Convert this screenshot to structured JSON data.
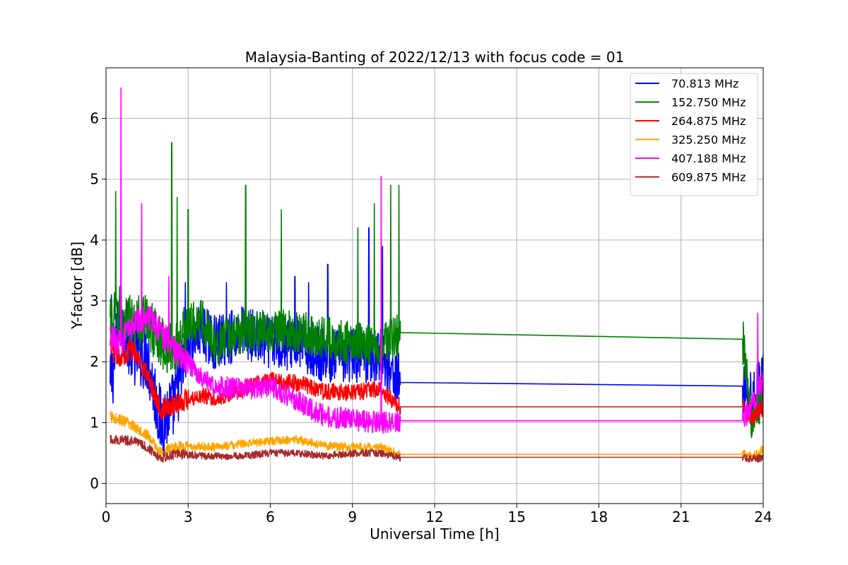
{
  "chart_data": {
    "type": "line",
    "title": "Malaysia-Banting of 2022/12/13 with focus code = 01",
    "xlabel": "Universal Time [h]",
    "ylabel": "Y-factor [dB]",
    "xlim": [
      0,
      24
    ],
    "ylim": [
      -0.33,
      6.83
    ],
    "xticks": [
      0,
      3,
      6,
      9,
      12,
      15,
      18,
      21,
      24
    ],
    "xtick_labels": [
      "0",
      "3",
      "6",
      "9",
      "12",
      "15",
      "18",
      "21",
      "24"
    ],
    "yticks": [
      0,
      1,
      2,
      3,
      4,
      5,
      6
    ],
    "ytick_labels": [
      "0",
      "1",
      "2",
      "3",
      "4",
      "5",
      "6"
    ],
    "grid": true,
    "legend_position": "top-right",
    "series": [
      {
        "name": " 70.813 MHz",
        "color": "#0000ff",
        "x": [
          0.15,
          0.5,
          1.0,
          1.5,
          2.0,
          2.5,
          3.0,
          3.5,
          4.0,
          5.0,
          6.0,
          7.0,
          8.0,
          9.0,
          10.0,
          10.75,
          23.25,
          23.6,
          24.0
        ],
        "y": [
          1.5,
          2.7,
          2.2,
          2.1,
          1.0,
          1.3,
          2.3,
          2.5,
          2.3,
          2.5,
          2.3,
          2.3,
          2.1,
          2.1,
          2.1,
          1.66,
          1.6,
          1.3,
          1.7
        ],
        "peaks_x": [
          0.2,
          1.3,
          2.9,
          4.4,
          6.9,
          7.4,
          8.1,
          9.2,
          9.6,
          10.1
        ],
        "peaks_y": [
          3.1,
          3.3,
          3.3,
          3.3,
          3.4,
          3.3,
          3.6,
          3.3,
          4.2,
          3.9
        ]
      },
      {
        "name": "152.750 MHz",
        "color": "#008000",
        "x": [
          0.15,
          0.5,
          1.0,
          1.5,
          2.0,
          2.5,
          3.0,
          3.5,
          4.0,
          5.0,
          6.0,
          7.0,
          8.0,
          9.0,
          10.0,
          10.75,
          23.25,
          23.6,
          24.0
        ],
        "y": [
          2.6,
          2.8,
          2.6,
          2.7,
          2.3,
          2.2,
          2.6,
          2.7,
          2.3,
          2.5,
          2.5,
          2.5,
          2.4,
          2.3,
          2.3,
          2.48,
          2.37,
          1.0,
          1.5
        ],
        "peaks_x": [
          0.35,
          2.4,
          2.6,
          3.0,
          5.1,
          6.4,
          9.2,
          9.8,
          10.4,
          10.7
        ],
        "peaks_y": [
          4.8,
          5.6,
          4.7,
          4.5,
          4.9,
          4.5,
          4.2,
          4.6,
          4.9,
          4.9
        ]
      },
      {
        "name": "264.875 MHz",
        "color": "#ff0000",
        "x": [
          0.15,
          0.5,
          1.0,
          1.5,
          2.0,
          2.5,
          3.0,
          3.5,
          4.0,
          5.0,
          6.0,
          7.0,
          8.0,
          9.0,
          10.0,
          10.75,
          23.25,
          23.6,
          24.0
        ],
        "y": [
          2.2,
          2.1,
          2.2,
          1.8,
          1.2,
          1.3,
          1.4,
          1.45,
          1.4,
          1.55,
          1.7,
          1.65,
          1.5,
          1.5,
          1.55,
          1.26,
          1.26,
          1.1,
          1.25
        ]
      },
      {
        "name": "325.250 MHz",
        "color": "#ffa500",
        "x": [
          0.15,
          0.5,
          1.0,
          1.5,
          2.0,
          2.5,
          3.0,
          3.5,
          4.0,
          5.0,
          6.0,
          7.0,
          8.0,
          9.0,
          10.0,
          10.75,
          23.25,
          23.6,
          24.0
        ],
        "y": [
          1.1,
          1.05,
          0.95,
          0.8,
          0.5,
          0.6,
          0.6,
          0.6,
          0.6,
          0.65,
          0.7,
          0.72,
          0.62,
          0.6,
          0.6,
          0.48,
          0.48,
          0.45,
          0.55
        ]
      },
      {
        "name": "407.188 MHz",
        "color": "#ff00ff",
        "x": [
          0.15,
          0.5,
          1.0,
          1.5,
          2.0,
          2.5,
          3.0,
          3.5,
          4.0,
          5.0,
          6.0,
          7.0,
          8.0,
          9.0,
          10.0,
          10.75,
          23.25,
          23.6,
          24.0
        ],
        "y": [
          2.4,
          2.3,
          2.6,
          2.8,
          2.5,
          2.2,
          2.0,
          1.7,
          1.6,
          1.55,
          1.6,
          1.35,
          1.1,
          1.05,
          1.0,
          1.03,
          1.03,
          1.3,
          1.7
        ],
        "peaks_x": [
          0.55,
          1.3,
          2.3,
          10.05,
          23.8
        ],
        "peaks_y": [
          6.5,
          4.6,
          3.4,
          5.05,
          2.8
        ]
      },
      {
        "name": "609.875 MHz",
        "color": "#a52a2a",
        "x": [
          0.15,
          0.5,
          1.0,
          1.5,
          2.0,
          2.5,
          3.0,
          3.5,
          4.0,
          5.0,
          6.0,
          7.0,
          8.0,
          9.0,
          10.0,
          10.75,
          23.25,
          23.6,
          24.0
        ],
        "y": [
          0.72,
          0.72,
          0.7,
          0.6,
          0.42,
          0.48,
          0.48,
          0.45,
          0.45,
          0.45,
          0.5,
          0.5,
          0.45,
          0.5,
          0.5,
          0.43,
          0.43,
          0.4,
          0.42
        ]
      }
    ]
  }
}
